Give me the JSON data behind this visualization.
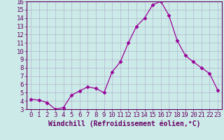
{
  "x": [
    0,
    1,
    2,
    3,
    4,
    5,
    6,
    7,
    8,
    9,
    10,
    11,
    12,
    13,
    14,
    15,
    16,
    17,
    18,
    19,
    20,
    21,
    22,
    23
  ],
  "y": [
    4.2,
    4.1,
    3.8,
    3.0,
    3.2,
    4.7,
    5.2,
    5.7,
    5.5,
    5.0,
    7.5,
    8.7,
    11.0,
    13.0,
    14.0,
    15.6,
    16.0,
    14.3,
    11.3,
    9.5,
    8.7,
    8.0,
    7.3,
    5.3
  ],
  "line_color": "#990099",
  "marker": "D",
  "marker_size": 2.5,
  "bg_color": "#cceae7",
  "grid_color": "#aaaacc",
  "xlabel": "Windchill (Refroidissement éolien,°C)",
  "xlim": [
    -0.5,
    23.5
  ],
  "ylim": [
    3,
    16
  ],
  "yticks": [
    3,
    4,
    5,
    6,
    7,
    8,
    9,
    10,
    11,
    12,
    13,
    14,
    15,
    16
  ],
  "xtick_labels": [
    "0",
    "1",
    "2",
    "3",
    "4",
    "5",
    "6",
    "7",
    "8",
    "9",
    "10",
    "11",
    "12",
    "13",
    "14",
    "15",
    "16",
    "17",
    "18",
    "19",
    "20",
    "21",
    "22",
    "23"
  ],
  "label_color": "#660066",
  "tick_color": "#660066",
  "spine_color": "#660066",
  "font_size": 6.5
}
